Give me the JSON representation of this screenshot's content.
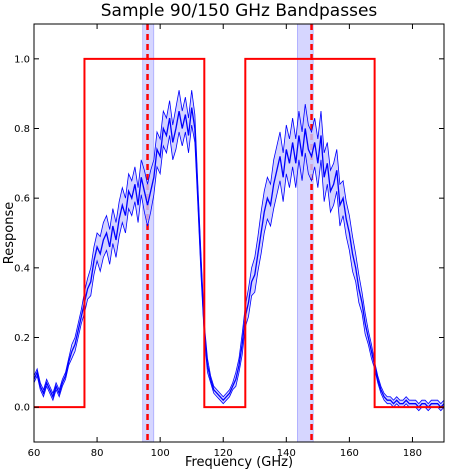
{
  "chart_data": {
    "type": "line",
    "title": "Sample 90/150 GHz Bandpasses",
    "xlabel": "Frequency (GHz)",
    "ylabel": "Response",
    "xlim": [
      60,
      190
    ],
    "ylim": [
      -0.1,
      1.1
    ],
    "xticks": [
      60,
      80,
      100,
      120,
      140,
      160,
      180
    ],
    "xtick_labels": [
      "60",
      "80",
      "100",
      "120",
      "140",
      "160",
      "180"
    ],
    "yticks": [
      0.0,
      0.2,
      0.4,
      0.6,
      0.8,
      1.0
    ],
    "ytick_labels": [
      "0.0",
      "0.2",
      "0.4",
      "0.6",
      "0.8",
      "1.0"
    ],
    "grid": false,
    "colors": {
      "band_edges": "#ff0000",
      "band_centers": "#ff0000",
      "measured": "#0000ff",
      "shaded": "#c8c8ff"
    },
    "band_edges": {
      "x": [
        60,
        76,
        76,
        114,
        114,
        127,
        127,
        168,
        168,
        190
      ],
      "y": [
        0,
        0,
        1,
        1,
        0,
        0,
        1,
        1,
        0,
        0
      ]
    },
    "center_bands": [
      {
        "center": 96,
        "low": 94.5,
        "high": 98
      },
      {
        "center": 148,
        "low": 143.5,
        "high": 148.5
      }
    ],
    "measured": {
      "x": [
        60,
        61,
        62,
        63,
        64,
        65,
        66,
        67,
        68,
        69,
        70,
        71,
        72,
        73,
        74,
        75,
        76,
        77,
        78,
        79,
        80,
        81,
        82,
        83,
        84,
        85,
        86,
        87,
        88,
        89,
        90,
        91,
        92,
        93,
        94,
        95,
        96,
        97,
        98,
        99,
        100,
        101,
        102,
        103,
        104,
        105,
        106,
        107,
        108,
        109,
        110,
        111,
        112,
        113,
        114,
        115,
        116,
        117,
        118,
        119,
        120,
        121,
        122,
        123,
        124,
        125,
        126,
        127,
        128,
        129,
        130,
        131,
        132,
        133,
        134,
        135,
        136,
        137,
        138,
        139,
        140,
        141,
        142,
        143,
        144,
        145,
        146,
        147,
        148,
        149,
        150,
        151,
        152,
        153,
        154,
        155,
        156,
        157,
        158,
        159,
        160,
        161,
        162,
        163,
        164,
        165,
        166,
        167,
        168,
        169,
        170,
        171,
        172,
        173,
        174,
        175,
        176,
        177,
        178,
        179,
        180,
        181,
        182,
        183,
        184,
        185,
        186,
        187,
        188,
        189,
        190
      ],
      "y": [
        0.08,
        0.1,
        0.06,
        0.04,
        0.07,
        0.05,
        0.03,
        0.06,
        0.04,
        0.07,
        0.09,
        0.13,
        0.16,
        0.18,
        0.22,
        0.26,
        0.3,
        0.34,
        0.36,
        0.42,
        0.46,
        0.44,
        0.48,
        0.5,
        0.46,
        0.52,
        0.48,
        0.54,
        0.58,
        0.55,
        0.62,
        0.6,
        0.64,
        0.58,
        0.66,
        0.62,
        0.58,
        0.62,
        0.66,
        0.74,
        0.72,
        0.8,
        0.78,
        0.83,
        0.76,
        0.8,
        0.85,
        0.8,
        0.84,
        0.78,
        0.86,
        0.8,
        0.6,
        0.4,
        0.22,
        0.12,
        0.08,
        0.05,
        0.04,
        0.03,
        0.02,
        0.03,
        0.04,
        0.06,
        0.08,
        0.12,
        0.18,
        0.26,
        0.3,
        0.36,
        0.38,
        0.44,
        0.5,
        0.56,
        0.6,
        0.58,
        0.64,
        0.68,
        0.72,
        0.66,
        0.74,
        0.7,
        0.76,
        0.7,
        0.78,
        0.72,
        0.8,
        0.74,
        0.72,
        0.76,
        0.7,
        0.78,
        0.66,
        0.7,
        0.62,
        0.64,
        0.68,
        0.58,
        0.6,
        0.54,
        0.5,
        0.44,
        0.4,
        0.34,
        0.3,
        0.24,
        0.2,
        0.16,
        0.12,
        0.08,
        0.05,
        0.03,
        0.02,
        0.02,
        0.01,
        0.02,
        0.01,
        0.01,
        0.02,
        0.01,
        0.01,
        0.01,
        0.0,
        0.01,
        0.01,
        0.0,
        0.01,
        0.01,
        0.01,
        0.0,
        0.01
      ],
      "spread": [
        0.01,
        0.01,
        0.01,
        0.01,
        0.01,
        0.01,
        0.01,
        0.01,
        0.01,
        0.01,
        0.01,
        0.01,
        0.02,
        0.02,
        0.02,
        0.02,
        0.03,
        0.03,
        0.04,
        0.04,
        0.04,
        0.05,
        0.05,
        0.05,
        0.05,
        0.05,
        0.05,
        0.05,
        0.05,
        0.05,
        0.05,
        0.05,
        0.05,
        0.05,
        0.05,
        0.06,
        0.06,
        0.06,
        0.05,
        0.05,
        0.05,
        0.05,
        0.05,
        0.05,
        0.05,
        0.06,
        0.06,
        0.05,
        0.05,
        0.05,
        0.05,
        0.04,
        0.03,
        0.03,
        0.02,
        0.02,
        0.01,
        0.01,
        0.01,
        0.01,
        0.01,
        0.01,
        0.01,
        0.01,
        0.02,
        0.02,
        0.03,
        0.03,
        0.04,
        0.04,
        0.05,
        0.05,
        0.06,
        0.06,
        0.06,
        0.06,
        0.07,
        0.07,
        0.07,
        0.07,
        0.07,
        0.07,
        0.07,
        0.07,
        0.07,
        0.07,
        0.07,
        0.07,
        0.07,
        0.07,
        0.07,
        0.07,
        0.07,
        0.06,
        0.06,
        0.06,
        0.06,
        0.06,
        0.05,
        0.05,
        0.05,
        0.05,
        0.04,
        0.04,
        0.03,
        0.03,
        0.02,
        0.02,
        0.01,
        0.01,
        0.01,
        0.01,
        0.01,
        0.01,
        0.01,
        0.01,
        0.01,
        0.01,
        0.01,
        0.01,
        0.01,
        0.01,
        0.01,
        0.01,
        0.01,
        0.01,
        0.01,
        0.01,
        0.01,
        0.01,
        0.01
      ]
    }
  }
}
